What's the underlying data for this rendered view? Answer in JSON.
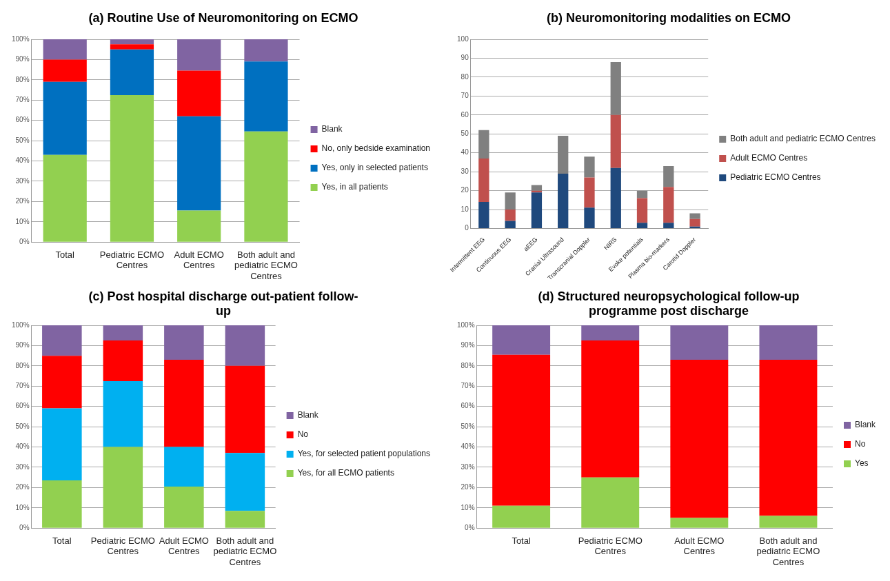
{
  "chart_data": [
    {
      "type": "bar",
      "title": "(a) Routine Use of Neuromonitoring on ECMO",
      "categories": [
        "Total",
        "Pediatric ECMO Centres",
        "Adult ECMO Centres",
        "Both adult and pediatric ECMO Centres"
      ],
      "stacked": true,
      "legend": "right",
      "grid": "y",
      "ylim": [
        0,
        100
      ],
      "yticks": [
        {
          "value": 0,
          "label": "0%"
        },
        {
          "value": 10,
          "label": "10%"
        },
        {
          "value": 20,
          "label": "20%"
        },
        {
          "value": 30,
          "label": "30%"
        },
        {
          "value": 40,
          "label": "40%"
        },
        {
          "value": 50,
          "label": "50%"
        },
        {
          "value": 60,
          "label": "60%"
        },
        {
          "value": 70,
          "label": "70%"
        },
        {
          "value": 80,
          "label": "80%"
        },
        {
          "value": 90,
          "label": "90%"
        },
        {
          "value": 100,
          "label": "100%"
        }
      ],
      "series": [
        {
          "name": "Yes, in all patients",
          "color": "#92d050",
          "values": [
            43,
            72.5,
            15.5,
            54.5
          ]
        },
        {
          "name": "Yes, only in selected patients",
          "color": "#0070c0",
          "values": [
            36,
            22.5,
            46.5,
            34.5
          ]
        },
        {
          "name": "No, only bedside examination",
          "color": "#ff0000",
          "values": [
            11,
            2.5,
            22.5,
            0
          ]
        },
        {
          "name": "Blank",
          "color": "#8064a2",
          "values": [
            10,
            2.5,
            15.5,
            11
          ]
        }
      ]
    },
    {
      "type": "bar",
      "title": "(b) Neuromonitoring modalities on ECMO",
      "categories": [
        "Intermittent EEG",
        "Continuous EEG",
        "aEEG",
        "Cranial Ultrasound",
        "Transcranial Doppler",
        "NIRS",
        "Evoke potentials",
        "Plasma bio-markers",
        "Carotid Doppler"
      ],
      "stacked": true,
      "legend": "right",
      "grid": "y",
      "ylim": [
        0,
        100
      ],
      "yticks": [
        0,
        10,
        20,
        30,
        40,
        50,
        60,
        70,
        80,
        90,
        100
      ],
      "series": [
        {
          "name": "Pediatric ECMO Centres",
          "color": "#1f497d",
          "values": [
            14,
            4,
            19,
            29,
            11,
            32,
            3,
            3,
            1
          ]
        },
        {
          "name": "Adult ECMO Centres",
          "color": "#c0504d",
          "values": [
            23,
            6,
            1,
            0,
            16,
            28,
            13,
            19,
            4
          ]
        },
        {
          "name": "Both adult and pediatric ECMO Centres",
          "color": "#808080",
          "values": [
            15,
            9,
            3,
            20,
            11,
            28,
            4,
            11,
            3
          ]
        }
      ]
    },
    {
      "type": "bar",
      "title": "(c) Post hospital discharge out-patient follow-up",
      "categories": [
        "Total",
        "Pediatric ECMO Centres",
        "Adult ECMO Centres",
        "Both adult and pediatric ECMO Centres"
      ],
      "stacked": true,
      "legend": "right",
      "grid": "y",
      "ylim": [
        0,
        100
      ],
      "yticks": [
        {
          "value": 0,
          "label": "0%"
        },
        {
          "value": 10,
          "label": "10%"
        },
        {
          "value": 20,
          "label": "20%"
        },
        {
          "value": 30,
          "label": "30%"
        },
        {
          "value": 40,
          "label": "40%"
        },
        {
          "value": 50,
          "label": "50%"
        },
        {
          "value": 60,
          "label": "60%"
        },
        {
          "value": 70,
          "label": "70%"
        },
        {
          "value": 80,
          "label": "80%"
        },
        {
          "value": 90,
          "label": "90%"
        },
        {
          "value": 100,
          "label": "100%"
        }
      ],
      "series": [
        {
          "name": "Yes, for all ECMO patients",
          "color": "#92d050",
          "values": [
            23.5,
            40,
            20.5,
            8.5
          ]
        },
        {
          "name": "Yes, for selected patient populations",
          "color": "#00b0f0",
          "values": [
            35.5,
            32.5,
            19.5,
            28.5
          ]
        },
        {
          "name": "No",
          "color": "#ff0000",
          "values": [
            26,
            20,
            43,
            43
          ]
        },
        {
          "name": "Blank",
          "color": "#8064a2",
          "values": [
            15,
            7.5,
            17,
            20
          ]
        }
      ]
    },
    {
      "type": "bar",
      "title": "(d) Structured neuropsychological follow-up programme post discharge",
      "categories": [
        "Total",
        "Pediatric ECMO Centres",
        "Adult ECMO Centres",
        "Both adult and pediatric ECMO Centres"
      ],
      "stacked": true,
      "legend": "right",
      "grid": "y",
      "ylim": [
        0,
        100
      ],
      "yticks": [
        {
          "value": 0,
          "label": "0%"
        },
        {
          "value": 10,
          "label": "10%"
        },
        {
          "value": 20,
          "label": "20%"
        },
        {
          "value": 30,
          "label": "30%"
        },
        {
          "value": 40,
          "label": "40%"
        },
        {
          "value": 50,
          "label": "50%"
        },
        {
          "value": 60,
          "label": "60%"
        },
        {
          "value": 70,
          "label": "70%"
        },
        {
          "value": 80,
          "label": "80%"
        },
        {
          "value": 90,
          "label": "90%"
        },
        {
          "value": 100,
          "label": "100%"
        }
      ],
      "series": [
        {
          "name": "Yes",
          "color": "#92d050",
          "values": [
            11,
            25,
            5,
            6
          ]
        },
        {
          "name": "No",
          "color": "#ff0000",
          "values": [
            74.5,
            67.5,
            78,
            77
          ]
        },
        {
          "name": "Blank",
          "color": "#8064a2",
          "values": [
            14.5,
            7.5,
            17,
            17
          ]
        }
      ]
    }
  ]
}
